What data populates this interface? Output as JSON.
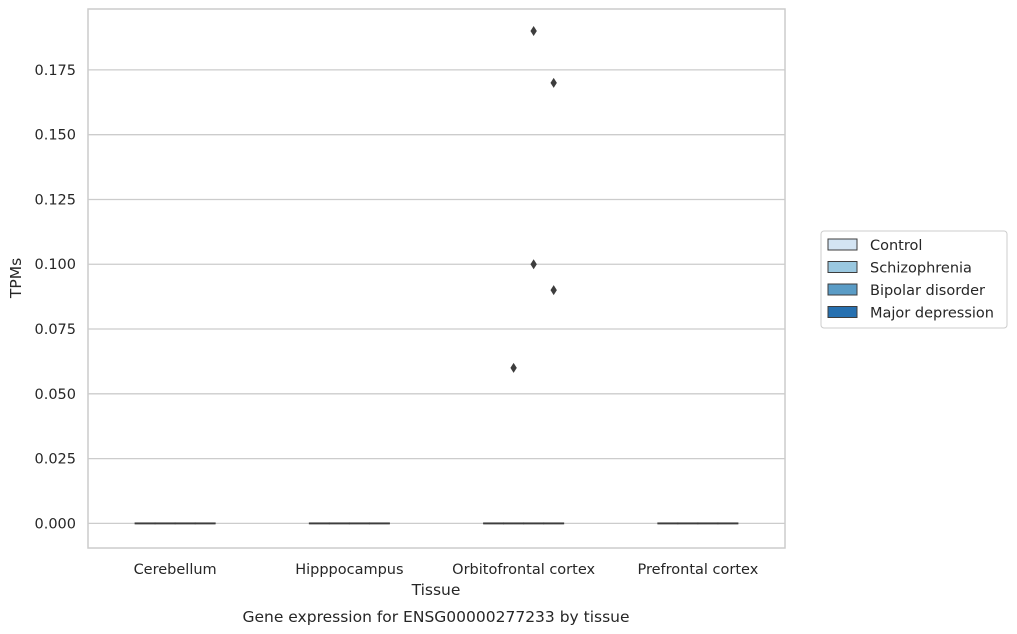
{
  "chart_data": {
    "type": "box",
    "title": "",
    "caption": "Gene expression for ENSG00000277233 by tissue",
    "xlabel": "Tissue",
    "ylabel": "TPMs",
    "ylim": [
      -0.0095,
      0.1985
    ],
    "yticks": [
      0.0,
      0.025,
      0.05,
      0.075,
      0.1,
      0.125,
      0.15,
      0.175
    ],
    "ytick_labels": [
      "0.000",
      "0.025",
      "0.050",
      "0.075",
      "0.100",
      "0.125",
      "0.150",
      "0.175"
    ],
    "grid": "horizontal",
    "legend_position": "right",
    "categories": [
      "Cerebellum",
      "Hipppocampus",
      "Orbitofrontal cortex",
      "Prefrontal cortex"
    ],
    "series": [
      {
        "name": "Control",
        "color": "#d3e4f3",
        "boxes": [
          {
            "category": "Cerebellum",
            "q1": 0,
            "median": 0,
            "q3": 0,
            "whisker_low": 0,
            "whisker_high": 0,
            "outliers": []
          },
          {
            "category": "Hipppocampus",
            "q1": 0,
            "median": 0,
            "q3": 0,
            "whisker_low": 0,
            "whisker_high": 0,
            "outliers": []
          },
          {
            "category": "Orbitofrontal cortex",
            "q1": 0,
            "median": 0,
            "q3": 0,
            "whisker_low": 0,
            "whisker_high": 0,
            "outliers": []
          },
          {
            "category": "Prefrontal cortex",
            "q1": 0,
            "median": 0,
            "q3": 0,
            "whisker_low": 0,
            "whisker_high": 0,
            "outliers": []
          }
        ]
      },
      {
        "name": "Schizophrenia",
        "color": "#9ac8e0",
        "boxes": [
          {
            "category": "Cerebellum",
            "q1": 0,
            "median": 0,
            "q3": 0,
            "whisker_low": 0,
            "whisker_high": 0,
            "outliers": []
          },
          {
            "category": "Hipppocampus",
            "q1": 0,
            "median": 0,
            "q3": 0,
            "whisker_low": 0,
            "whisker_high": 0,
            "outliers": []
          },
          {
            "category": "Orbitofrontal cortex",
            "q1": 0,
            "median": 0,
            "q3": 0,
            "whisker_low": 0,
            "whisker_high": 0,
            "outliers": [
              0.06
            ]
          },
          {
            "category": "Prefrontal cortex",
            "q1": 0,
            "median": 0,
            "q3": 0,
            "whisker_low": 0,
            "whisker_high": 0,
            "outliers": []
          }
        ]
      },
      {
        "name": "Bipolar disorder",
        "color": "#5a9cc6",
        "boxes": [
          {
            "category": "Cerebellum",
            "q1": 0,
            "median": 0,
            "q3": 0,
            "whisker_low": 0,
            "whisker_high": 0,
            "outliers": []
          },
          {
            "category": "Hipppocampus",
            "q1": 0,
            "median": 0,
            "q3": 0,
            "whisker_low": 0,
            "whisker_high": 0,
            "outliers": []
          },
          {
            "category": "Orbitofrontal cortex",
            "q1": 0,
            "median": 0,
            "q3": 0,
            "whisker_low": 0,
            "whisker_high": 0,
            "outliers": [
              0.19,
              0.1
            ]
          },
          {
            "category": "Prefrontal cortex",
            "q1": 0,
            "median": 0,
            "q3": 0,
            "whisker_low": 0,
            "whisker_high": 0,
            "outliers": []
          }
        ]
      },
      {
        "name": "Major depression",
        "color": "#2670b0",
        "boxes": [
          {
            "category": "Cerebellum",
            "q1": 0,
            "median": 0,
            "q3": 0,
            "whisker_low": 0,
            "whisker_high": 0,
            "outliers": []
          },
          {
            "category": "Hipppocampus",
            "q1": 0,
            "median": 0,
            "q3": 0,
            "whisker_low": 0,
            "whisker_high": 0,
            "outliers": []
          },
          {
            "category": "Orbitofrontal cortex",
            "q1": 0,
            "median": 0,
            "q3": 0,
            "whisker_low": 0,
            "whisker_high": 0,
            "outliers": [
              0.17,
              0.09
            ]
          },
          {
            "category": "Prefrontal cortex",
            "q1": 0,
            "median": 0,
            "q3": 0,
            "whisker_low": 0,
            "whisker_high": 0,
            "outliers": []
          }
        ]
      }
    ],
    "colors": {
      "grid": "#cccccc",
      "frame": "#cccccc",
      "box_edge": "#3d3d3d",
      "outlier": "#3d3d3d",
      "legend_border": "#cccccc"
    }
  }
}
